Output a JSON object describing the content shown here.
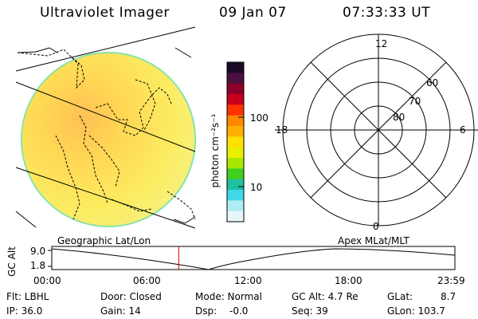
{
  "header": {
    "title": "Ultraviolet Imager",
    "date": "09 Jan 07",
    "time": "07:33:33 UT"
  },
  "colorbar": {
    "label": "photon cm⁻²s⁻¹",
    "ticks": [
      "100",
      "10"
    ],
    "colors": [
      "#1a0a24",
      "#4a1040",
      "#8b0028",
      "#c8001e",
      "#ff3300",
      "#ff8800",
      "#ffb000",
      "#ffe000",
      "#e8f000",
      "#a8e800",
      "#40d020",
      "#20c0a0",
      "#40d8e8",
      "#b0ecf4",
      "#e8f6f8"
    ]
  },
  "polar_plot": {
    "radial_labels": [
      "80",
      "70",
      "60"
    ],
    "mlt_labels": {
      "top": "12",
      "left": "18",
      "right": "6",
      "bottom": "0"
    }
  },
  "timeline": {
    "left_caption": "Geographic Lat/Lon",
    "right_caption": "Apex MLat/MLT",
    "ylabel": "GC Alt",
    "y_ticks": [
      "9.0",
      "1.8"
    ],
    "x_ticks": [
      "00:00",
      "06:00",
      "12:00",
      "18:00",
      "23:59"
    ],
    "current_time_marker_hours": 7.56,
    "marker_color": "#cc0000"
  },
  "status": {
    "filter": "Flt: LBHL",
    "door": "Door: Closed",
    "mode": "Mode: Normal",
    "gc_alt": "GC Alt: 4.7 Re",
    "glat": "GLat:",
    "glat_val": "8.7",
    "ip": "IP: 36.0",
    "gain": "Gain: 14",
    "dsp": "Dsp:",
    "dsp_val": "-0.0",
    "seq": "Seq: 39",
    "glon": "GLon: 103.7"
  }
}
